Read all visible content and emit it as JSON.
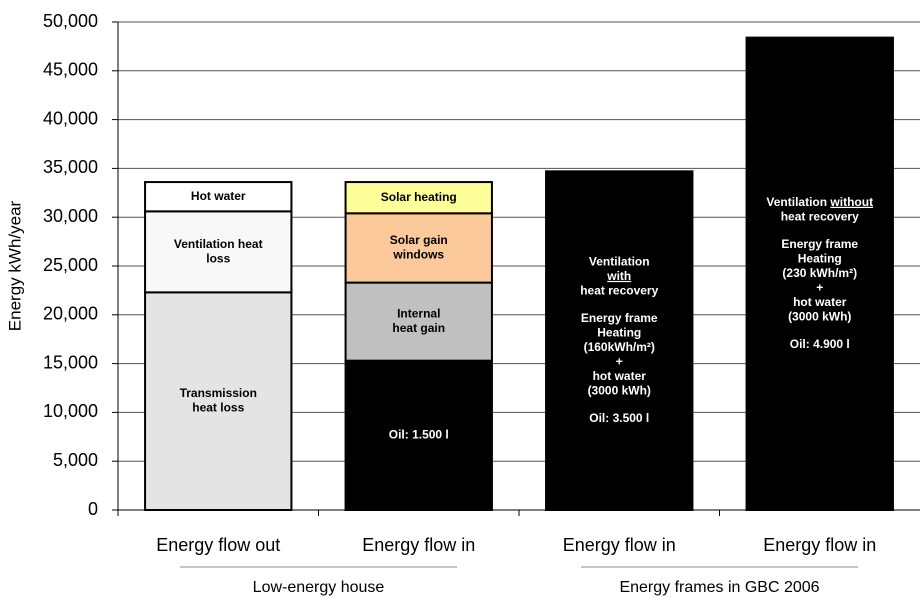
{
  "chart_data": {
    "type": "stacked-bar",
    "ylabel": "Energy kWh/year",
    "ylim": [
      0,
      50000
    ],
    "yticks": [
      0,
      {
        "value": 5000,
        "label": "5,000"
      },
      {
        "value": 10000,
        "label": "10,000"
      },
      {
        "value": 15000,
        "label": "15,000"
      },
      {
        "value": 20000,
        "label": "20,000"
      },
      {
        "value": 25000,
        "label": "25,000"
      },
      {
        "value": 30000,
        "label": "30,000"
      },
      {
        "value": 35000,
        "label": "35,000"
      },
      {
        "value": 40000,
        "label": "40,000"
      },
      {
        "value": 45000,
        "label": "45,000"
      },
      {
        "value": 50000,
        "label": "50,000"
      }
    ],
    "grid": true,
    "groups": [
      {
        "name": "Low-energy house",
        "bars": [
          {
            "category": "Energy flow out",
            "segments": [
              {
                "label": [
                  [
                    "Transmission",
                    "heat loss"
                  ]
                ],
                "value": 22300,
                "color": "#e4e4e4",
                "text_color": "#000000"
              },
              {
                "label": [
                  [
                    "Ventilation heat",
                    "loss"
                  ]
                ],
                "value": 8300,
                "color": "#f8f8f8",
                "text_color": "#000000"
              },
              {
                "label": [
                  [
                    "Hot water"
                  ]
                ],
                "value": 3000,
                "color": "#ffffff",
                "text_color": "#000000"
              }
            ]
          },
          {
            "category": "Energy flow in",
            "segments": [
              {
                "label": [
                  [
                    "Oil: 1.500 l"
                  ]
                ],
                "value": 15300,
                "color": "#000000",
                "text_color": "#ffffff"
              },
              {
                "label": [
                  [
                    "Internal",
                    "heat gain"
                  ]
                ],
                "value": 8000,
                "color": "#c0c0c0",
                "text_color": "#000000"
              },
              {
                "label": [
                  [
                    "Solar gain",
                    "windows"
                  ]
                ],
                "value": 7100,
                "color": "#fcc99b",
                "text_color": "#000000"
              },
              {
                "label": [
                  [
                    "Solar heating"
                  ]
                ],
                "value": 3200,
                "color": "#ffff99",
                "text_color": "#000000"
              }
            ]
          }
        ]
      },
      {
        "name": "Energy frames in GBC 2006",
        "bars": [
          {
            "category": "Energy flow in",
            "segments": [
              {
                "label": [
                  [
                    "Ventilation",
                    [
                      {
                        "text": "with",
                        "underline": true
                      }
                    ],
                    "heat recovery"
                  ],
                  [
                    "Energy frame",
                    "Heating",
                    "(160kWh/m²)",
                    "+",
                    "hot water",
                    "(3000 kWh)"
                  ],
                  [
                    "Oil: 3.500 l"
                  ]
                ],
                "value": 34700,
                "color": "#000000",
                "text_color": "#ffffff"
              }
            ]
          },
          {
            "category": "Energy flow in",
            "segments": [
              {
                "label": [
                  [
                    [
                      {
                        "text": "Ventilation "
                      },
                      {
                        "text": "without",
                        "underline": true
                      }
                    ],
                    "heat recovery"
                  ],
                  [
                    "Energy frame",
                    "Heating",
                    "(230 kWh/m²)",
                    "+",
                    "hot water",
                    "(3000 kWh)"
                  ],
                  [
                    "Oil: 4.900 l"
                  ]
                ],
                "value": 48400,
                "color": "#000000",
                "text_color": "#ffffff"
              }
            ]
          }
        ]
      }
    ]
  }
}
